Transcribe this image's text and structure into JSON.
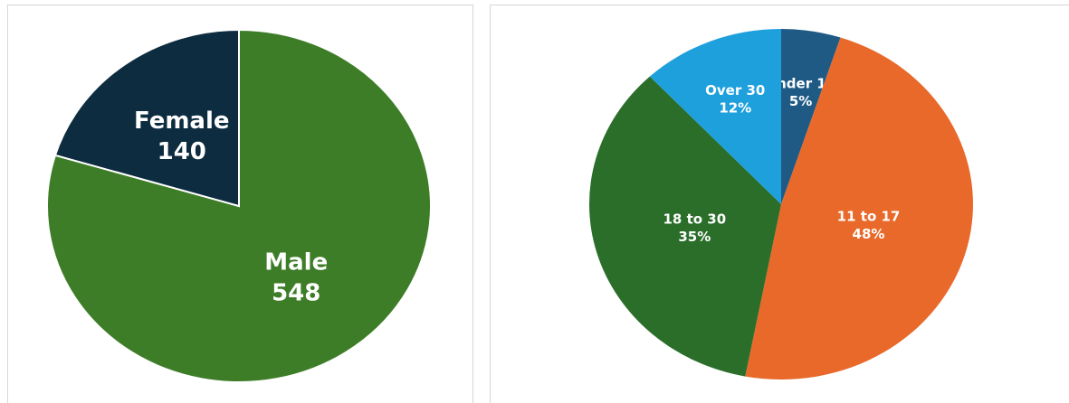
{
  "chart_data": [
    {
      "type": "pie",
      "categories": [
        "Male",
        "Female"
      ],
      "values": [
        548,
        140
      ],
      "colors": [
        "#3e7d27",
        "#0d2c40"
      ]
    },
    {
      "type": "pie",
      "categories": [
        "Under 11",
        "11 to 17",
        "18 to 30",
        "Over 30"
      ],
      "values": [
        5,
        48,
        35,
        12
      ],
      "value_labels": [
        "5%",
        "48%",
        "35%",
        "12%"
      ],
      "colors": [
        "#1f5a85",
        "#e8692a",
        "#2a6e2a",
        "#1ea0dc"
      ]
    }
  ]
}
